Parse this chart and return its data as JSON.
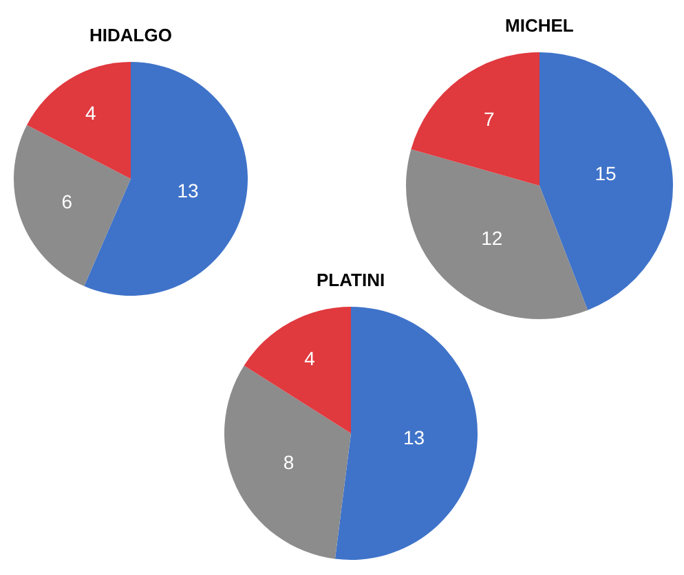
{
  "chart_data": [
    {
      "type": "pie",
      "title": "HIDALGO",
      "categories": [
        null,
        null,
        null
      ],
      "values": [
        13,
        6,
        4
      ],
      "colors": [
        "#3f73c9",
        "#8c8c8c",
        "#e0393e"
      ],
      "data_labels": true
    },
    {
      "type": "pie",
      "title": "MICHEL",
      "categories": [
        null,
        null,
        null
      ],
      "values": [
        15,
        12,
        7
      ],
      "colors": [
        "#3f73c9",
        "#8c8c8c",
        "#e0393e"
      ],
      "data_labels": true
    },
    {
      "type": "pie",
      "title": "PLATINI",
      "categories": [
        null,
        null,
        null
      ],
      "values": [
        13,
        8,
        4
      ],
      "colors": [
        "#3f73c9",
        "#8c8c8c",
        "#e0393e"
      ],
      "data_labels": true
    }
  ]
}
